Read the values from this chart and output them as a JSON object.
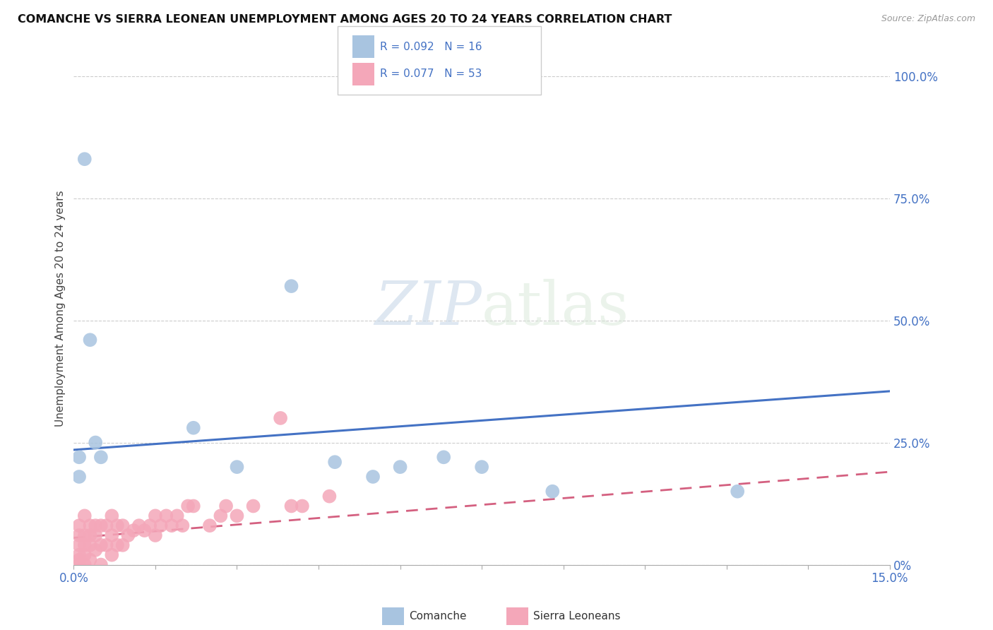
{
  "title": "COMANCHE VS SIERRA LEONEAN UNEMPLOYMENT AMONG AGES 20 TO 24 YEARS CORRELATION CHART",
  "source": "Source: ZipAtlas.com",
  "ylabel": "Unemployment Among Ages 20 to 24 years",
  "xlim": [
    0.0,
    0.15
  ],
  "ylim": [
    0.0,
    1.05
  ],
  "comanche_R": "0.092",
  "comanche_N": "16",
  "sierraleonean_R": "0.077",
  "sierraleonean_N": "53",
  "comanche_color": "#a8c4e0",
  "sierraleonean_color": "#f4a7b9",
  "comanche_line_color": "#4472c4",
  "sierraleonean_line_color": "#d46080",
  "legend_text_color": "#4472c4",
  "watermark_zip": "ZIP",
  "watermark_atlas": "atlas",
  "yticks": [
    0.0,
    0.25,
    0.5,
    0.75,
    1.0
  ],
  "ytick_labels": [
    "0%",
    "25.0%",
    "50.0%",
    "75.0%",
    "100.0%"
  ],
  "xticks": [
    0.0,
    0.015,
    0.03,
    0.045,
    0.06,
    0.075,
    0.09,
    0.105,
    0.12,
    0.135,
    0.15
  ],
  "grid_color": "#cccccc",
  "spine_color": "#aaaaaa",
  "comanche_x": [
    0.001,
    0.001,
    0.002,
    0.003,
    0.004,
    0.005,
    0.022,
    0.03,
    0.04,
    0.048,
    0.055,
    0.06,
    0.068,
    0.075,
    0.088,
    0.122
  ],
  "comanche_y": [
    0.22,
    0.18,
    0.83,
    0.46,
    0.25,
    0.22,
    0.28,
    0.2,
    0.57,
    0.21,
    0.18,
    0.2,
    0.22,
    0.2,
    0.15,
    0.15
  ],
  "sl_x": [
    0.001,
    0.001,
    0.001,
    0.001,
    0.001,
    0.001,
    0.002,
    0.002,
    0.002,
    0.002,
    0.002,
    0.003,
    0.003,
    0.003,
    0.003,
    0.004,
    0.004,
    0.004,
    0.005,
    0.005,
    0.005,
    0.006,
    0.006,
    0.007,
    0.007,
    0.007,
    0.008,
    0.008,
    0.009,
    0.009,
    0.01,
    0.011,
    0.012,
    0.013,
    0.014,
    0.015,
    0.015,
    0.016,
    0.017,
    0.018,
    0.019,
    0.02,
    0.021,
    0.022,
    0.025,
    0.027,
    0.028,
    0.03,
    0.033,
    0.038,
    0.04,
    0.042,
    0.047
  ],
  "sl_y": [
    0.0,
    0.01,
    0.02,
    0.04,
    0.06,
    0.08,
    0.0,
    0.02,
    0.04,
    0.06,
    0.1,
    0.01,
    0.04,
    0.06,
    0.08,
    0.03,
    0.06,
    0.08,
    0.0,
    0.04,
    0.08,
    0.04,
    0.08,
    0.02,
    0.06,
    0.1,
    0.04,
    0.08,
    0.04,
    0.08,
    0.06,
    0.07,
    0.08,
    0.07,
    0.08,
    0.1,
    0.06,
    0.08,
    0.1,
    0.08,
    0.1,
    0.08,
    0.12,
    0.12,
    0.08,
    0.1,
    0.12,
    0.1,
    0.12,
    0.3,
    0.12,
    0.12,
    0.14
  ],
  "comanche_trend_x0": 0.0,
  "comanche_trend_y0": 0.235,
  "comanche_trend_x1": 0.15,
  "comanche_trend_y1": 0.355,
  "sl_trend_x0": 0.0,
  "sl_trend_y0": 0.055,
  "sl_trend_x1": 0.15,
  "sl_trend_y1": 0.19
}
